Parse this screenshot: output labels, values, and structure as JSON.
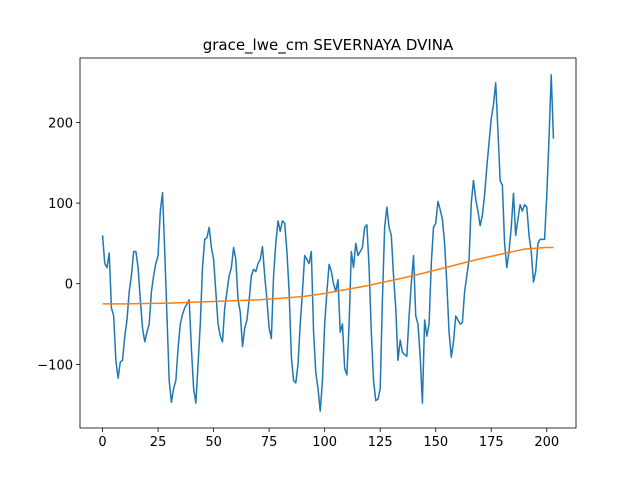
{
  "chart_data": {
    "type": "line",
    "title": "grace_lwe_cm SEVERNAYA DVINA",
    "xlim": [
      -10.15,
      213.15
    ],
    "xticks": [
      0,
      25,
      50,
      75,
      100,
      125,
      150,
      175,
      200
    ],
    "ylim": [
      -178.9,
      279.9
    ],
    "yticks": [
      {
        "value": -100,
        "label": "−100"
      },
      0,
      100,
      200
    ],
    "grid": false,
    "series": [
      {
        "color": "#1f77b4",
        "x": [
          0,
          1,
          2,
          3,
          4,
          5,
          6,
          7,
          8,
          9,
          10,
          11,
          12,
          13,
          14,
          15,
          16,
          17,
          18,
          19,
          20,
          21,
          22,
          23,
          24,
          25,
          26,
          27,
          28,
          29,
          30,
          31,
          32,
          33,
          34,
          35,
          36,
          37,
          38,
          39,
          40,
          41,
          42,
          43,
          44,
          45,
          46,
          47,
          48,
          49,
          50,
          51,
          52,
          53,
          54,
          55,
          56,
          57,
          58,
          59,
          60,
          61,
          62,
          63,
          64,
          65,
          66,
          67,
          68,
          69,
          70,
          71,
          72,
          73,
          74,
          75,
          76,
          77,
          78,
          79,
          80,
          81,
          82,
          83,
          84,
          85,
          86,
          87,
          88,
          89,
          90,
          91,
          92,
          93,
          94,
          95,
          96,
          97,
          98,
          99,
          100,
          101,
          102,
          103,
          104,
          105,
          106,
          107,
          108,
          109,
          110,
          111,
          112,
          113,
          114,
          115,
          116,
          117,
          118,
          119,
          120,
          121,
          122,
          123,
          124,
          125,
          126,
          127,
          128,
          129,
          130,
          131,
          132,
          133,
          134,
          135,
          136,
          137,
          138,
          139,
          140,
          141,
          142,
          143,
          144,
          145,
          146,
          147,
          148,
          149,
          150,
          151,
          152,
          153,
          154,
          155,
          156,
          157,
          158,
          159,
          160,
          161,
          162,
          163,
          164,
          165,
          166,
          167,
          168,
          169,
          170,
          171,
          172,
          173,
          174,
          175,
          176,
          177,
          178,
          179,
          180,
          181,
          182,
          183,
          184,
          185,
          186,
          187,
          188,
          189,
          190,
          191,
          192,
          193,
          194,
          195,
          196,
          197,
          198,
          199,
          200,
          201,
          202,
          203
        ],
        "values": [
          60,
          25,
          20,
          38,
          -30,
          -40,
          -95,
          -117,
          -97,
          -95,
          -65,
          -45,
          -10,
          10,
          40,
          40,
          20,
          -20,
          -55,
          -72,
          -60,
          -50,
          -10,
          10,
          25,
          35,
          90,
          113,
          40,
          -40,
          -120,
          -147,
          -130,
          -120,
          -80,
          -50,
          -38,
          -30,
          -25,
          -20,
          -80,
          -130,
          -148,
          -100,
          -50,
          20,
          55,
          57,
          70,
          45,
          30,
          -10,
          -50,
          -65,
          -72,
          -30,
          -10,
          10,
          20,
          45,
          30,
          -20,
          -35,
          -78,
          -55,
          -45,
          -20,
          10,
          18,
          15,
          25,
          30,
          46,
          10,
          -20,
          -55,
          -68,
          10,
          50,
          78,
          65,
          78,
          75,
          40,
          -10,
          -90,
          -120,
          -123,
          -100,
          -50,
          -10,
          35,
          30,
          25,
          40,
          -60,
          -110,
          -130,
          -158,
          -120,
          -50,
          -10,
          24,
          15,
          0,
          -10,
          5,
          -60,
          -50,
          -105,
          -113,
          -50,
          40,
          20,
          50,
          35,
          40,
          45,
          70,
          73,
          20,
          -60,
          -120,
          -145,
          -143,
          -130,
          -20,
          70,
          95,
          70,
          60,
          10,
          -30,
          -95,
          -70,
          -85,
          -88,
          -90,
          -40,
          0,
          35,
          -40,
          -50,
          -90,
          -148,
          -45,
          -65,
          -50,
          25,
          70,
          75,
          102,
          92,
          80,
          50,
          0,
          -60,
          -91,
          -72,
          -40,
          -45,
          -50,
          -48,
          -10,
          10,
          30,
          100,
          128,
          105,
          90,
          72,
          85,
          110,
          145,
          175,
          205,
          222,
          249,
          190,
          128,
          122,
          50,
          20,
          40,
          70,
          112,
          60,
          80,
          98,
          90,
          98,
          95,
          60,
          40,
          2,
          15,
          50,
          55,
          55,
          55,
          110,
          180,
          259,
          180
        ]
      },
      {
        "color": "#ff7f0e",
        "x": [
          0,
          10,
          20,
          30,
          40,
          50,
          60,
          70,
          80,
          90,
          100,
          110,
          120,
          130,
          140,
          150,
          160,
          170,
          180,
          190,
          200,
          203
        ],
        "values": [
          -25,
          -25,
          -24.5,
          -24,
          -23,
          -22,
          -21,
          -20,
          -18,
          -16,
          -12,
          -7,
          -2,
          4,
          10,
          17,
          24,
          31,
          37,
          43,
          45,
          45
        ]
      }
    ]
  }
}
